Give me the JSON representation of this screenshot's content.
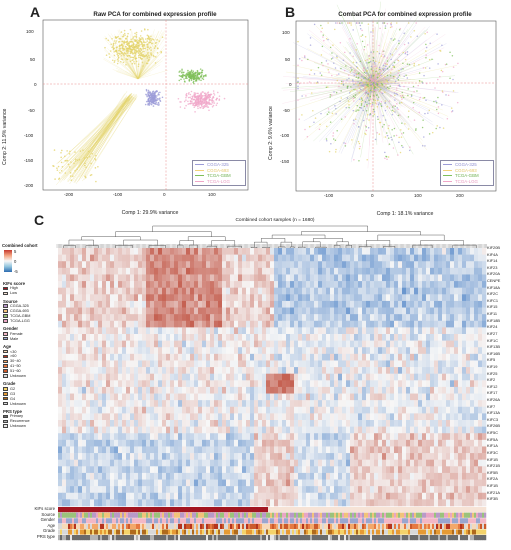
{
  "panels": {
    "A": {
      "letter": "A",
      "title": "Raw PCA for combined expression profile",
      "xlabel": "Comp 1: 29.9% variance",
      "ylabel": "Comp 2: 11.9% variance",
      "xticks": [
        "-200",
        "-100",
        "0",
        "100"
      ],
      "yticks": [
        "100",
        "50",
        "0",
        "-50",
        "-100",
        "-150",
        "-200"
      ],
      "legend": [
        "CGGA-325",
        "CGGA-693",
        "TCGA-GBM",
        "TCGA-LGG"
      ]
    },
    "B": {
      "letter": "B",
      "title": "Combat PCA for combined expression profile",
      "xlabel": "Comp 1: 18.1% variance",
      "ylabel": "Comp 2: 9.6% variance",
      "xticks": [
        "-100",
        "0",
        "100",
        "200"
      ],
      "yticks": [
        "100",
        "50",
        "0",
        "-50",
        "-100",
        "-150"
      ],
      "legend": [
        "CGGA-325",
        "CGGA-693",
        "TCGA-GBM",
        "TCGA-LGG"
      ]
    },
    "C": {
      "letter": "C",
      "title": "Combined cohort samples (n = 1680)",
      "colorbar_title": "Combined cohort",
      "colorbar_ticks": [
        "5",
        "0",
        "-5"
      ],
      "genes": [
        "KIF20B",
        "KIF4A",
        "KIF14",
        "KIF23",
        "KIF20A",
        "CENPE",
        "KIF18A",
        "KIF2C",
        "KIFC1",
        "KIF15",
        "KIF11",
        "KIF18B",
        "KIF24",
        "KIF27",
        "KIF1C",
        "KIF13B",
        "KIF16B",
        "KIF5",
        "KIF19",
        "KIF25",
        "KIF2",
        "KIF12",
        "KIF17",
        "KIF26A",
        "KIF7",
        "KIF13A",
        "KIFC3",
        "KIF26B",
        "KIF5C",
        "KIF5A",
        "KIF1A",
        "KIF3C",
        "KIF1B",
        "KIF21B",
        "KIF5B",
        "KIF2A",
        "KIF1B",
        "KIF21A",
        "KIF3B"
      ],
      "annotation_rows": [
        "KIFs score",
        "Source",
        "Gender",
        "Age",
        "Grade",
        "PRS type"
      ],
      "side_legends": [
        {
          "title": "KIFs score",
          "items": [
            {
              "label": "High",
              "color": "#a31621"
            },
            {
              "label": "Low",
              "color": "#f6e3d6"
            }
          ]
        },
        {
          "title": "Source",
          "items": [
            {
              "label": "CGGA-325",
              "color": "#b89ac8"
            },
            {
              "label": "CGGA-693",
              "color": "#f1c37a"
            },
            {
              "label": "TCGA-GBM",
              "color": "#9bc27b"
            },
            {
              "label": "TCGA-LGG",
              "color": "#e8a6c4"
            }
          ]
        },
        {
          "title": "Gender",
          "items": [
            {
              "label": "Female",
              "color": "#f3b8c6"
            },
            {
              "label": "Male",
              "color": "#9aa6cf"
            }
          ]
        },
        {
          "title": "Age",
          "items": [
            {
              "label": "<30",
              "color": "#f7d9b8"
            },
            {
              "label": ">60",
              "color": "#b5341f"
            },
            {
              "label": "30~40",
              "color": "#f3a86a"
            },
            {
              "label": "41~50",
              "color": "#e77a43"
            },
            {
              "label": "51~60",
              "color": "#cc5a2c"
            },
            {
              "label": "Unknown",
              "color": "#d9d9d9"
            }
          ]
        },
        {
          "title": "Grade",
          "items": [
            {
              "label": "G2",
              "color": "#f4d36b"
            },
            {
              "label": "G3",
              "color": "#e59a34"
            },
            {
              "label": "G4",
              "color": "#b06a1c"
            },
            {
              "label": "Unknown",
              "color": "#d9d9d9"
            }
          ]
        },
        {
          "title": "PRS type",
          "items": [
            {
              "label": "Primary",
              "color": "#6b6b6b"
            },
            {
              "label": "Recurrence",
              "color": "#b3b3b3"
            },
            {
              "label": "Unknown",
              "color": "#e7e7e7"
            }
          ]
        }
      ]
    }
  },
  "colors": {
    "cgga325": "#9c9cd8",
    "cgga693": "#f2d27a",
    "tcga_gbm": "#7fbf5a",
    "tcga_lgg": "#f0a6c8",
    "yellow_main": "#e3d36a",
    "heat_high": "#d6604d",
    "heat_low": "#4f7fc0",
    "heat_mid": "#f7f7f7"
  }
}
